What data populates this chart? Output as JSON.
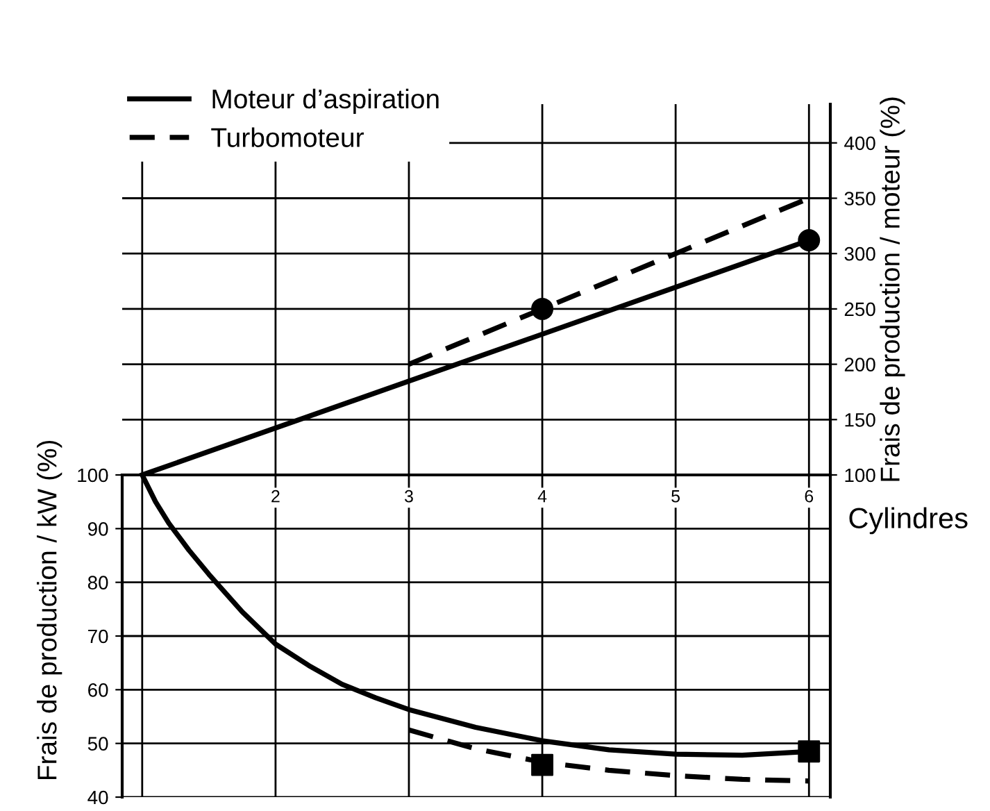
{
  "chart_data": [
    {
      "type": "line",
      "ylabel": "Frais de production / moteur (%)",
      "xlim": [
        0.85,
        6.16
      ],
      "ylim": [
        100,
        435
      ],
      "xticks": [
        {
          "value": 1,
          "label": null
        },
        {
          "value": 2,
          "label": null
        },
        {
          "value": 3,
          "label": null
        },
        {
          "value": 4,
          "label": null
        },
        {
          "value": 5,
          "label": null
        },
        {
          "value": 6,
          "label": null
        }
      ],
      "yticks": [
        100,
        150,
        200,
        250,
        300,
        350,
        400
      ],
      "tick_labels": "y",
      "grid": true,
      "legend": "top left",
      "series": [
        {
          "name": "Moteur d’aspiration",
          "color": "#000000",
          "line_style": "solid",
          "x": [
            1,
            6
          ],
          "values": [
            100,
            312
          ]
        },
        {
          "name": "Turbomoteur",
          "color": "#000000",
          "line_style": "dashed",
          "x": [
            3,
            6
          ],
          "values": [
            200,
            350
          ]
        },
        {
          "type": "scatter",
          "color": "#000000",
          "marker": "circle",
          "x": [
            4,
            6
          ],
          "values": [
            250,
            312
          ]
        }
      ]
    },
    {
      "type": "line",
      "ylabel": "Frais de production / kW (%)",
      "xlabel": "Cylindres",
      "xlim": [
        0.85,
        6.16
      ],
      "ylim": [
        40,
        100
      ],
      "xticks": [
        {
          "value": 1,
          "label": null
        },
        2,
        3,
        4,
        5,
        6
      ],
      "yticks": [
        40,
        50,
        60,
        70,
        80,
        90,
        100
      ],
      "grid": true,
      "series": [
        {
          "color": "#000000",
          "line_style": "solid",
          "x": [
            1,
            1.1,
            1.2,
            1.35,
            1.5,
            1.75,
            2,
            2.25,
            2.5,
            2.75,
            3,
            3.5,
            4,
            4.5,
            5,
            5.5,
            6
          ],
          "values": [
            100,
            95,
            91,
            86,
            81.5,
            74.5,
            68.5,
            64.5,
            61,
            58.5,
            56.3,
            53,
            50.5,
            48.8,
            48,
            47.8,
            48.5
          ]
        },
        {
          "color": "#000000",
          "line_style": "dashed",
          "x": [
            3,
            3.5,
            4,
            4.5,
            5,
            5.5,
            6
          ],
          "values": [
            52.5,
            49,
            46.5,
            45,
            44,
            43.3,
            43
          ]
        },
        {
          "type": "scatter",
          "color": "#000000",
          "marker": "square",
          "x": [
            4,
            6
          ],
          "values": [
            46,
            48.5
          ]
        }
      ]
    }
  ]
}
